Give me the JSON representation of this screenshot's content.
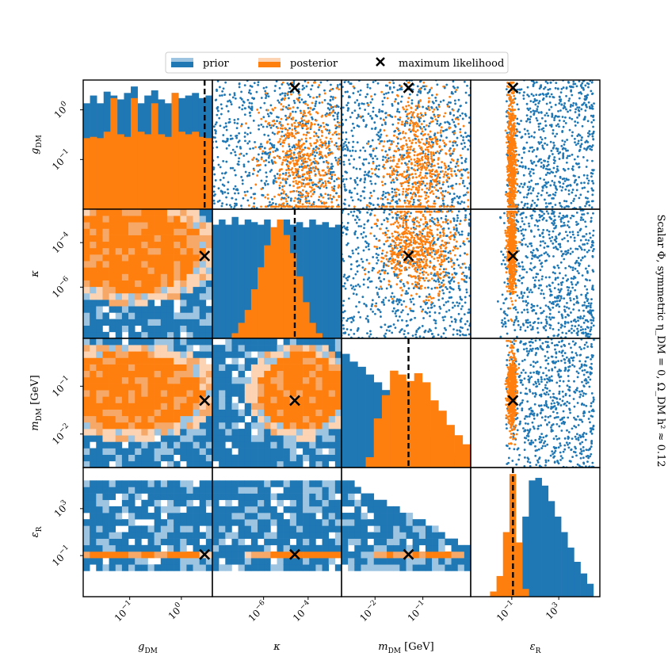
{
  "chart_data": {
    "type": "corner",
    "title_side": "Scalar Φ, symmetric η_DM = 0, Ω_DM h² ≈ 0.12",
    "legend": {
      "prior": "prior",
      "posterior": "posterior",
      "ml": "maximum likelihood",
      "placement": "top-center"
    },
    "colors": {
      "prior": "#1f77b4",
      "prior_light": "#9dc4e0",
      "posterior": "#ff7f0e",
      "posterior_light": "#fcd3b3",
      "posterior_mid": "#f6a868",
      "marker": "#000000"
    },
    "parameters": [
      {
        "name": "g_DM",
        "label_main": "g",
        "label_sub": "DM",
        "unit": "",
        "log10_range": [
          -1.9,
          0.6
        ],
        "ticks": [
          {
            "value": -1,
            "base": "10",
            "exp": "−1"
          },
          {
            "value": 0,
            "base": "10",
            "exp": "0"
          }
        ]
      },
      {
        "name": "kappa",
        "label_main": "κ",
        "label_sub": "",
        "unit": "",
        "log10_range": [
          -8.3,
          -2.5
        ],
        "ticks": [
          {
            "value": -6,
            "base": "10",
            "exp": "−6"
          },
          {
            "value": -4,
            "base": "10",
            "exp": "−4"
          }
        ]
      },
      {
        "name": "m_DM",
        "label_main": "m",
        "label_sub": "DM",
        "unit": " [GeV]",
        "log10_range": [
          -2.7,
          0.0
        ],
        "ticks": [
          {
            "value": -2,
            "base": "10",
            "exp": "−2"
          },
          {
            "value": -1,
            "base": "10",
            "exp": "−1"
          }
        ]
      },
      {
        "name": "epsilon_R",
        "label_main": "ε",
        "label_sub": "R",
        "unit": "",
        "log10_range": [
          -4.5,
          6.5
        ],
        "ticks": [
          {
            "value": -1,
            "base": "10",
            "exp": "−1"
          },
          {
            "value": 3,
            "base": "10",
            "exp": "3"
          }
        ]
      }
    ],
    "max_likelihood_log10": [
      0.45,
      -4.6,
      -1.3,
      -0.9
    ],
    "prior_hist_g": [
      0.82,
      0.88,
      0.82,
      0.91,
      0.88,
      0.85,
      0.9,
      0.95,
      0.82,
      0.88,
      0.92,
      0.85,
      0.82,
      0.9,
      0.86,
      0.88,
      0.9,
      0.86,
      0.88
    ],
    "posterior_hist_g": [
      0.55,
      0.56,
      0.55,
      0.6,
      0.86,
      0.58,
      0.56,
      0.86,
      0.6,
      0.58,
      0.82,
      0.58,
      0.56,
      0.9,
      0.6,
      0.58,
      0.6,
      0.56,
      0.55
    ],
    "prior_hist_kappa": [
      0.88,
      0.92,
      0.88,
      0.94,
      0.88,
      0.92,
      0.9,
      0.88,
      0.92,
      0.86,
      0.88,
      0.92,
      0.88,
      0.9,
      0.86,
      0.92,
      0.88,
      0.9,
      0.86,
      0.88
    ],
    "posterior_hist_kappa": [
      0.0,
      0.0,
      0.0,
      0.04,
      0.12,
      0.22,
      0.38,
      0.55,
      0.72,
      0.86,
      0.92,
      0.8,
      0.66,
      0.48,
      0.28,
      0.12,
      0.04,
      0.0,
      0.0,
      0.0
    ],
    "prior_hist_m": [
      0.88,
      0.82,
      0.78,
      0.72,
      0.66,
      0.6,
      0.53,
      0.47,
      0.41,
      0.35,
      0.29,
      0.23,
      0.17,
      0.12,
      0.07,
      0.03
    ],
    "posterior_hist_m": [
      0.0,
      0.0,
      0.0,
      0.08,
      0.38,
      0.56,
      0.75,
      0.72,
      0.67,
      0.73,
      0.66,
      0.52,
      0.44,
      0.33,
      0.25,
      0.18
    ],
    "prior_hist_eps": [
      0.0,
      0.0,
      0.0,
      0.0,
      0.0,
      0.0,
      0.05,
      0.3,
      0.62,
      0.9,
      0.92,
      0.86,
      0.74,
      0.62,
      0.5,
      0.38,
      0.27,
      0.18,
      0.1,
      0.0
    ],
    "posterior_hist_eps": [
      0.0,
      0.0,
      0.0,
      0.04,
      0.16,
      0.5,
      0.95,
      0.42,
      0.06,
      0.0,
      0.0,
      0.0,
      0.0,
      0.0,
      0.0,
      0.0,
      0.0,
      0.0,
      0.0,
      0.0
    ],
    "posterior_center_log10": [
      -1.0,
      -4.3,
      -1.1,
      -1.0
    ],
    "posterior_spread_log10": [
      0.7,
      0.95,
      0.4,
      0.18
    ]
  }
}
